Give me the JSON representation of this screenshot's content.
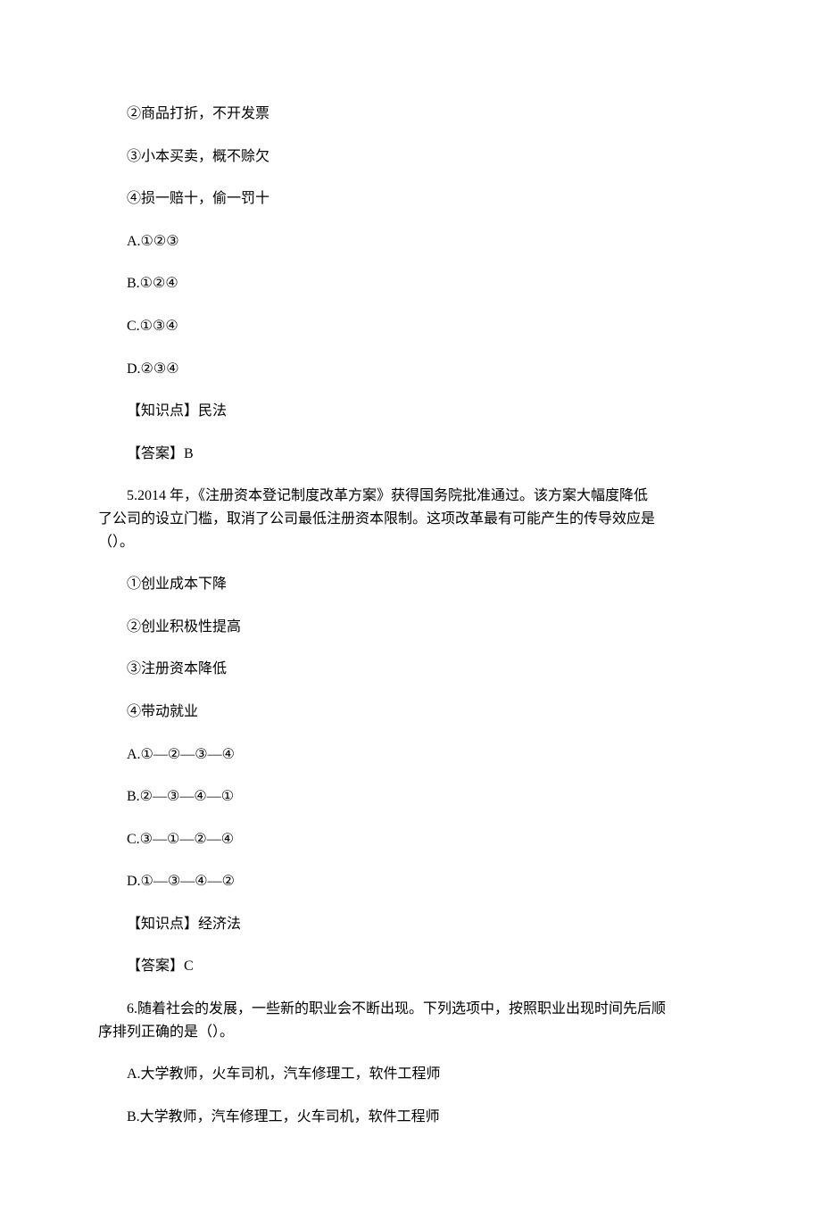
{
  "page": {
    "background_color": "#ffffff",
    "text_color": "#000000",
    "font_family": "SimSun",
    "font_size": 16
  },
  "q4": {
    "stmt2": "②商品打折，不开发票",
    "stmt3": "③小本买卖，概不赊欠",
    "stmt4": "④损一赔十，偷一罚十",
    "optA": "A.①②③",
    "optB": "B.①②④",
    "optC": "C.①③④",
    "optD": "D.②③④",
    "kp": "【知识点】民法",
    "ans": "【答案】B"
  },
  "q5": {
    "stem1": "5.2014 年，《注册资本登记制度改革方案》获得国务院批准通过。该方案大幅度降低",
    "stem2": "了公司的设立门槛，取消了公司最低注册资本限制。这项改革最有可能产生的传导效应是",
    "stem3": "（）。",
    "stmt1": "①创业成本下降",
    "stmt2": "②创业积极性提高",
    "stmt3": "③注册资本降低",
    "stmt4": "④带动就业",
    "optA": "A.①—②—③—④",
    "optB": "B.②—③—④—①",
    "optC": "C.③—①—②—④",
    "optD": "D.①—③—④—②",
    "kp": "【知识点】经济法",
    "ans": "【答案】C"
  },
  "q6": {
    "stem1": "6.随着社会的发展，一些新的职业会不断出现。下列选项中，按照职业出现时间先后顺",
    "stem2": "序排列正确的是（）。",
    "optA": "A.大学教师，火车司机，汽车修理工，软件工程师",
    "optB": "B.大学教师，汽车修理工，火车司机，软件工程师"
  }
}
